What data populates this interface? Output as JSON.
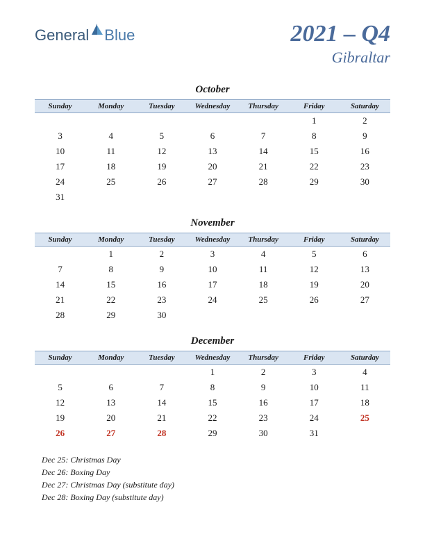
{
  "logo": {
    "part1": "General",
    "part2": "Blue"
  },
  "title": {
    "main": "2021 – Q4",
    "sub": "Gibraltar"
  },
  "colors": {
    "header_bg": "#dae5f2",
    "header_border": "#8aa5c5",
    "title_color": "#4a6a9a",
    "holiday_color": "#c03020"
  },
  "day_headers": [
    "Sunday",
    "Monday",
    "Tuesday",
    "Wednesday",
    "Thursday",
    "Friday",
    "Saturday"
  ],
  "months": [
    {
      "name": "October",
      "weeks": [
        [
          "",
          "",
          "",
          "",
          "",
          "1",
          "2"
        ],
        [
          "3",
          "4",
          "5",
          "6",
          "7",
          "8",
          "9"
        ],
        [
          "10",
          "11",
          "12",
          "13",
          "14",
          "15",
          "16"
        ],
        [
          "17",
          "18",
          "19",
          "20",
          "21",
          "22",
          "23"
        ],
        [
          "24",
          "25",
          "26",
          "27",
          "28",
          "29",
          "30"
        ],
        [
          "31",
          "",
          "",
          "",
          "",
          "",
          ""
        ]
      ],
      "holidays": []
    },
    {
      "name": "November",
      "weeks": [
        [
          "",
          "1",
          "2",
          "3",
          "4",
          "5",
          "6"
        ],
        [
          "7",
          "8",
          "9",
          "10",
          "11",
          "12",
          "13"
        ],
        [
          "14",
          "15",
          "16",
          "17",
          "18",
          "19",
          "20"
        ],
        [
          "21",
          "22",
          "23",
          "24",
          "25",
          "26",
          "27"
        ],
        [
          "28",
          "29",
          "30",
          "",
          "",
          "",
          ""
        ]
      ],
      "holidays": []
    },
    {
      "name": "December",
      "weeks": [
        [
          "",
          "",
          "",
          "1",
          "2",
          "3",
          "4"
        ],
        [
          "5",
          "6",
          "7",
          "8",
          "9",
          "10",
          "11"
        ],
        [
          "12",
          "13",
          "14",
          "15",
          "16",
          "17",
          "18"
        ],
        [
          "19",
          "20",
          "21",
          "22",
          "23",
          "24",
          "25"
        ],
        [
          "26",
          "27",
          "28",
          "29",
          "30",
          "31",
          ""
        ]
      ],
      "holidays": [
        "25",
        "26",
        "27",
        "28"
      ]
    }
  ],
  "holiday_list": [
    "Dec 25: Christmas Day",
    "Dec 26: Boxing Day",
    "Dec 27: Christmas Day (substitute day)",
    "Dec 28: Boxing Day (substitute day)"
  ]
}
